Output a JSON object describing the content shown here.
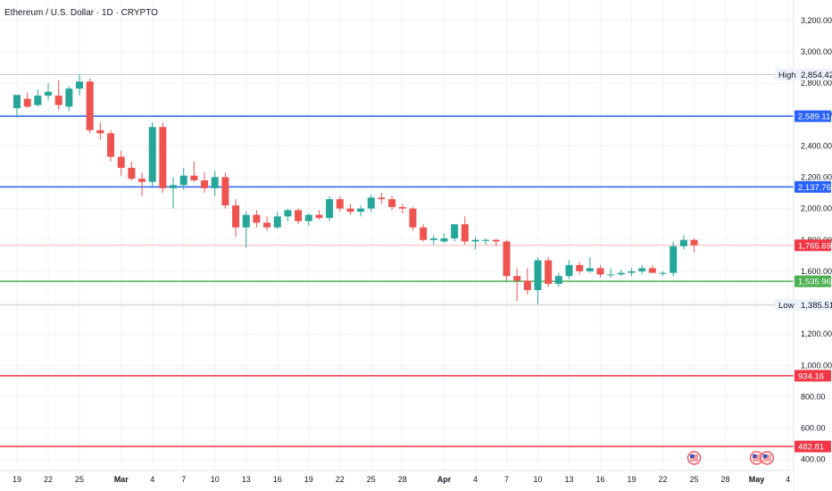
{
  "chart_data": {
    "type": "candlestick",
    "title": "Ethereum / U.S. Dollar · 1D · CRYPTO",
    "y_axis": {
      "side": "right",
      "ylim": [
        330,
        3330
      ],
      "ticks": [
        400,
        600,
        800,
        1000,
        1200,
        1400,
        1600,
        1800,
        2000,
        2200,
        2400,
        2600,
        2800,
        3000,
        3200
      ],
      "tick_labels": [
        "400.00",
        "600.00",
        "800.00",
        "1,000.00",
        "1,200.00",
        "1,400.00",
        "1,600.00",
        "1,800.00",
        "2,000.00",
        "2,200.00",
        "2,400.00",
        "2,600.00",
        "2,800.00",
        "3,000.00",
        "3,200.00"
      ]
    },
    "x_axis": {
      "labels": [
        "19",
        "22",
        "25",
        "Mar",
        "4",
        "7",
        "10",
        "13",
        "16",
        "19",
        "22",
        "25",
        "28",
        "Apr",
        "4",
        "7",
        "10",
        "13",
        "16",
        "19",
        "22",
        "25",
        "28",
        "May",
        "4"
      ],
      "label_days": [
        0,
        3,
        6,
        10,
        13,
        16,
        19,
        22,
        25,
        28,
        31,
        34,
        37,
        41,
        44,
        47,
        50,
        53,
        56,
        59,
        62,
        65,
        68,
        71,
        74
      ]
    },
    "grid": true,
    "candles": [
      {
        "day": 0,
        "o": 2640,
        "h": 2720,
        "l": 2580,
        "c": 2725
      },
      {
        "day": 1,
        "o": 2700,
        "h": 2740,
        "l": 2640,
        "c": 2650
      },
      {
        "day": 2,
        "o": 2660,
        "h": 2760,
        "l": 2650,
        "c": 2720
      },
      {
        "day": 3,
        "o": 2720,
        "h": 2800,
        "l": 2690,
        "c": 2745
      },
      {
        "day": 4,
        "o": 2720,
        "h": 2820,
        "l": 2630,
        "c": 2660
      },
      {
        "day": 5,
        "o": 2650,
        "h": 2780,
        "l": 2620,
        "c": 2765
      },
      {
        "day": 6,
        "o": 2765,
        "h": 2856,
        "l": 2720,
        "c": 2810
      },
      {
        "day": 7,
        "o": 2810,
        "h": 2830,
        "l": 2480,
        "c": 2500
      },
      {
        "day": 8,
        "o": 2500,
        "h": 2550,
        "l": 2440,
        "c": 2480
      },
      {
        "day": 9,
        "o": 2480,
        "h": 2500,
        "l": 2300,
        "c": 2330
      },
      {
        "day": 10,
        "o": 2330,
        "h": 2370,
        "l": 2210,
        "c": 2260
      },
      {
        "day": 11,
        "o": 2260,
        "h": 2300,
        "l": 2180,
        "c": 2190
      },
      {
        "day": 12,
        "o": 2190,
        "h": 2230,
        "l": 2080,
        "c": 2170
      },
      {
        "day": 13,
        "o": 2170,
        "h": 2550,
        "l": 2140,
        "c": 2520
      },
      {
        "day": 14,
        "o": 2520,
        "h": 2550,
        "l": 2100,
        "c": 2130
      },
      {
        "day": 15,
        "o": 2130,
        "h": 2200,
        "l": 2000,
        "c": 2150
      },
      {
        "day": 16,
        "o": 2150,
        "h": 2260,
        "l": 2120,
        "c": 2210
      },
      {
        "day": 17,
        "o": 2210,
        "h": 2300,
        "l": 2170,
        "c": 2180
      },
      {
        "day": 18,
        "o": 2180,
        "h": 2230,
        "l": 2100,
        "c": 2130
      },
      {
        "day": 19,
        "o": 2130,
        "h": 2240,
        "l": 2080,
        "c": 2200
      },
      {
        "day": 20,
        "o": 2200,
        "h": 2230,
        "l": 2000,
        "c": 2020
      },
      {
        "day": 21,
        "o": 2020,
        "h": 2060,
        "l": 1820,
        "c": 1880
      },
      {
        "day": 22,
        "o": 1880,
        "h": 1980,
        "l": 1750,
        "c": 1960
      },
      {
        "day": 23,
        "o": 1960,
        "h": 1990,
        "l": 1880,
        "c": 1910
      },
      {
        "day": 24,
        "o": 1910,
        "h": 1950,
        "l": 1860,
        "c": 1880
      },
      {
        "day": 25,
        "o": 1880,
        "h": 1980,
        "l": 1870,
        "c": 1950
      },
      {
        "day": 26,
        "o": 1950,
        "h": 2000,
        "l": 1920,
        "c": 1990
      },
      {
        "day": 27,
        "o": 1990,
        "h": 2000,
        "l": 1900,
        "c": 1920
      },
      {
        "day": 28,
        "o": 1920,
        "h": 1970,
        "l": 1890,
        "c": 1960
      },
      {
        "day": 29,
        "o": 1960,
        "h": 1990,
        "l": 1930,
        "c": 1940
      },
      {
        "day": 30,
        "o": 1940,
        "h": 2080,
        "l": 1920,
        "c": 2060
      },
      {
        "day": 31,
        "o": 2060,
        "h": 2080,
        "l": 1980,
        "c": 2000
      },
      {
        "day": 32,
        "o": 2000,
        "h": 2030,
        "l": 1960,
        "c": 1980
      },
      {
        "day": 33,
        "o": 1980,
        "h": 2020,
        "l": 1950,
        "c": 2000
      },
      {
        "day": 34,
        "o": 2000,
        "h": 2090,
        "l": 1980,
        "c": 2070
      },
      {
        "day": 35,
        "o": 2070,
        "h": 2100,
        "l": 2030,
        "c": 2060
      },
      {
        "day": 36,
        "o": 2060,
        "h": 2080,
        "l": 1990,
        "c": 2010
      },
      {
        "day": 37,
        "o": 2010,
        "h": 2030,
        "l": 1970,
        "c": 2000
      },
      {
        "day": 38,
        "o": 2000,
        "h": 2010,
        "l": 1860,
        "c": 1880
      },
      {
        "day": 39,
        "o": 1880,
        "h": 1900,
        "l": 1790,
        "c": 1800
      },
      {
        "day": 40,
        "o": 1800,
        "h": 1830,
        "l": 1770,
        "c": 1810
      },
      {
        "day": 41,
        "o": 1790,
        "h": 1840,
        "l": 1780,
        "c": 1810
      },
      {
        "day": 42,
        "o": 1810,
        "h": 1900,
        "l": 1790,
        "c": 1900
      },
      {
        "day": 43,
        "o": 1900,
        "h": 1950,
        "l": 1770,
        "c": 1790
      },
      {
        "day": 44,
        "o": 1790,
        "h": 1820,
        "l": 1740,
        "c": 1800
      },
      {
        "day": 45,
        "o": 1800,
        "h": 1810,
        "l": 1770,
        "c": 1800
      },
      {
        "day": 46,
        "o": 1800,
        "h": 1810,
        "l": 1760,
        "c": 1790
      },
      {
        "day": 47,
        "o": 1790,
        "h": 1800,
        "l": 1540,
        "c": 1570
      },
      {
        "day": 48,
        "o": 1570,
        "h": 1620,
        "l": 1410,
        "c": 1540
      },
      {
        "day": 49,
        "o": 1540,
        "h": 1620,
        "l": 1450,
        "c": 1480
      },
      {
        "day": 50,
        "o": 1480,
        "h": 1690,
        "l": 1390,
        "c": 1670
      },
      {
        "day": 51,
        "o": 1670,
        "h": 1690,
        "l": 1500,
        "c": 1520
      },
      {
        "day": 52,
        "o": 1520,
        "h": 1590,
        "l": 1500,
        "c": 1570
      },
      {
        "day": 53,
        "o": 1570,
        "h": 1670,
        "l": 1550,
        "c": 1640
      },
      {
        "day": 54,
        "o": 1640,
        "h": 1660,
        "l": 1580,
        "c": 1600
      },
      {
        "day": 55,
        "o": 1600,
        "h": 1690,
        "l": 1590,
        "c": 1620
      },
      {
        "day": 56,
        "o": 1620,
        "h": 1640,
        "l": 1560,
        "c": 1580
      },
      {
        "day": 57,
        "o": 1580,
        "h": 1620,
        "l": 1560,
        "c": 1580
      },
      {
        "day": 58,
        "o": 1580,
        "h": 1610,
        "l": 1570,
        "c": 1590
      },
      {
        "day": 59,
        "o": 1590,
        "h": 1620,
        "l": 1570,
        "c": 1600
      },
      {
        "day": 60,
        "o": 1600,
        "h": 1640,
        "l": 1580,
        "c": 1620
      },
      {
        "day": 61,
        "o": 1620,
        "h": 1640,
        "l": 1590,
        "c": 1590
      },
      {
        "day": 62,
        "o": 1590,
        "h": 1600,
        "l": 1570,
        "c": 1590
      },
      {
        "day": 63,
        "o": 1590,
        "h": 1790,
        "l": 1570,
        "c": 1760
      },
      {
        "day": 64,
        "o": 1760,
        "h": 1830,
        "l": 1740,
        "c": 1800
      },
      {
        "day": 65,
        "o": 1800,
        "h": 1810,
        "l": 1720,
        "c": 1766
      }
    ],
    "hlines": [
      {
        "value": 2589.11,
        "label": "2,589.11",
        "color": "#2962ff"
      },
      {
        "value": 2137.76,
        "label": "2,137.76",
        "color": "#2962ff"
      },
      {
        "value": 1535.96,
        "label": "1,535.96",
        "color": "#4caf50"
      },
      {
        "value": 934.16,
        "label": "934.16",
        "color": "#f23645"
      },
      {
        "value": 482.81,
        "label": "482.81",
        "color": "#f23645"
      }
    ],
    "high": {
      "value": 2854.42,
      "tag": "High",
      "label": "2,854.42"
    },
    "low": {
      "value": 1385.51,
      "tag": "Low",
      "label": "1,385.51"
    },
    "last_price": {
      "value": 1765.69,
      "label": "1,765.69",
      "color": "#f23645"
    },
    "colors": {
      "up": "#26a69a",
      "down": "#ef5350",
      "grid": "#f0f3fa",
      "axis_bg": "#ffffff",
      "axis_border": "#e0e3eb"
    },
    "event_markers": [
      {
        "day": 65,
        "icon": "us-flag-icon"
      },
      {
        "day": 71,
        "icon": "us-flag-icon"
      },
      {
        "day": 72,
        "icon": "us-flag-icon"
      }
    ]
  }
}
